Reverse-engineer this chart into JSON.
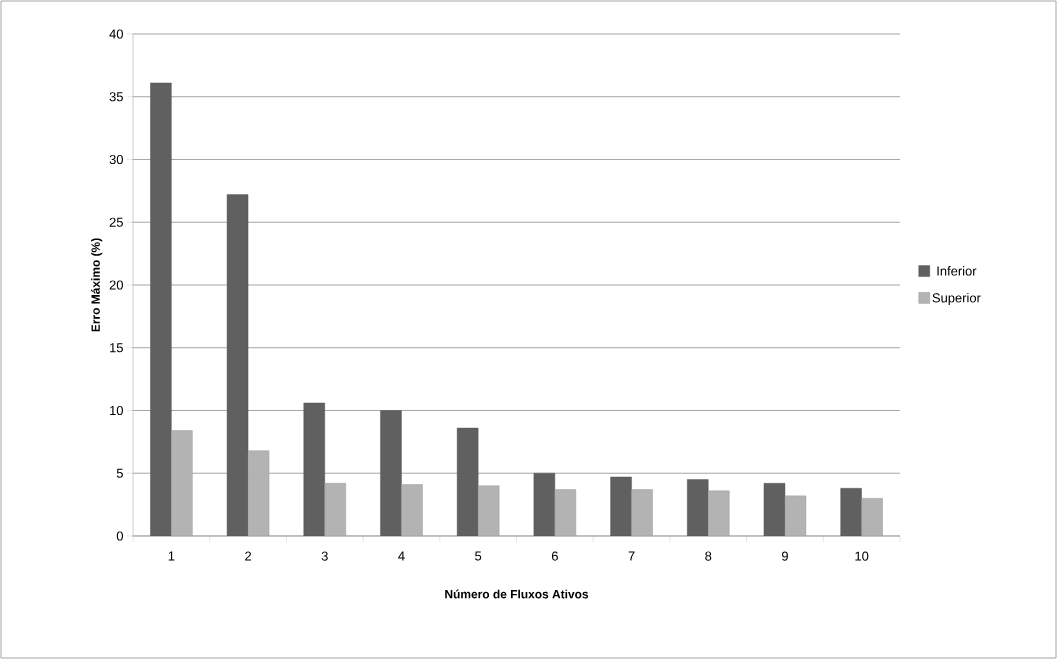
{
  "chart_data": {
    "type": "bar",
    "xlabel": "Número de Fluxos Ativos",
    "ylabel": "Erro Máximo (%)",
    "categories": [
      "1",
      "2",
      "3",
      "4",
      "5",
      "6",
      "7",
      "8",
      "9",
      "10"
    ],
    "series": [
      {
        "name": "Inferior",
        "color": "#606060",
        "values": [
          36.1,
          27.2,
          10.6,
          10.0,
          8.6,
          5.0,
          4.7,
          4.5,
          4.2,
          3.8
        ]
      },
      {
        "name": "Superior",
        "color": "#b3b3b3",
        "values": [
          8.4,
          6.8,
          4.2,
          4.1,
          4.0,
          3.7,
          3.7,
          3.6,
          3.2,
          3.0
        ]
      }
    ],
    "ylim": [
      0,
      40
    ],
    "yticks": [
      0,
      5,
      10,
      15,
      20,
      25,
      30,
      35,
      40
    ],
    "grid": "y",
    "legend": "right"
  }
}
